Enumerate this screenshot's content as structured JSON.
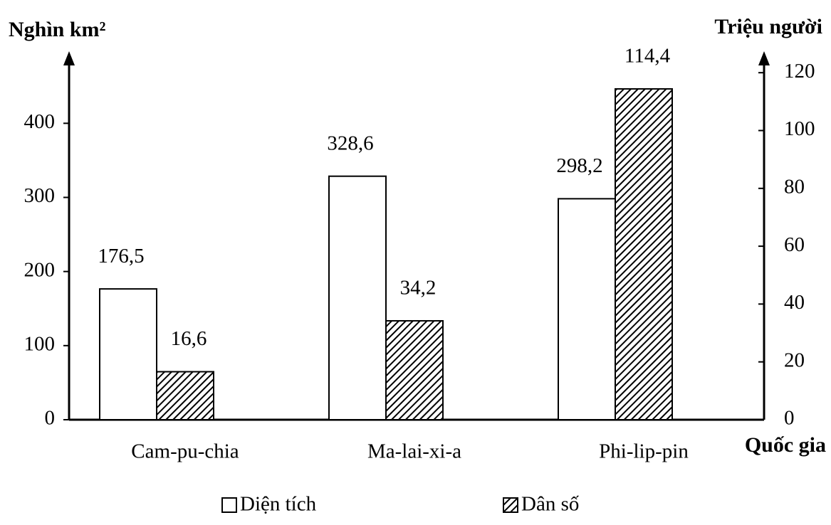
{
  "chart_data": {
    "type": "bar",
    "y_label": "Nghìn km²",
    "y2_label": "Triệu người",
    "x_label": "Quốc gia",
    "categories": [
      "Cam-pu-chia",
      "Ma-lai-xi-a",
      "Phi-lip-pin"
    ],
    "series": [
      {
        "name": "Diện tích",
        "color": "#ffffff",
        "values": [
          176.5,
          328.6,
          298.2
        ],
        "value_labels": [
          "176,5",
          "328,6",
          "298,2"
        ]
      },
      {
        "name": "Dân số",
        "color": "#000000",
        "pattern": "hatch",
        "axis": "y2",
        "values": [
          16.6,
          34.2,
          114.4
        ],
        "value_labels": [
          "16,6",
          "34,2",
          "114,4"
        ]
      }
    ],
    "ylim": [
      0,
      480
    ],
    "yticks": [
      0,
      100,
      200,
      300,
      400
    ],
    "y2lim": [
      0,
      123
    ],
    "y2ticks": [
      0,
      20,
      40,
      60,
      80,
      100,
      120
    ],
    "grid": false
  }
}
